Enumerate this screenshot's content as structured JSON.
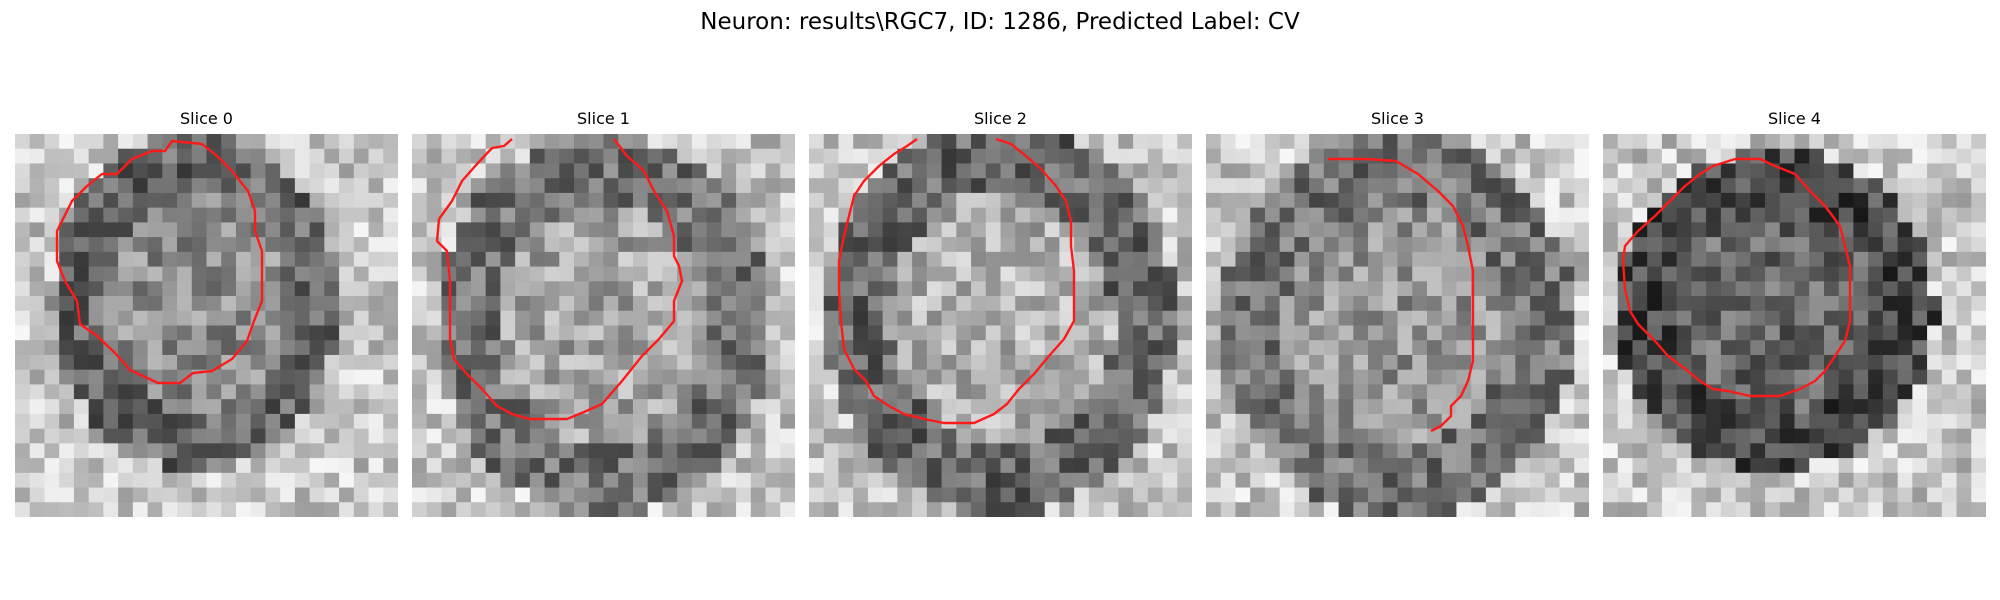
{
  "figure": {
    "title": "Neuron: results\\RGC7, ID: 1286, Predicted Label: CV"
  },
  "panels": [
    {
      "title": "Slice 0"
    },
    {
      "title": "Slice 1"
    },
    {
      "title": "Slice 2"
    },
    {
      "title": "Slice 3"
    },
    {
      "title": "Slice 4"
    }
  ],
  "colors": {
    "contour": "#ff1a1a",
    "colormap": "grayscale"
  }
}
